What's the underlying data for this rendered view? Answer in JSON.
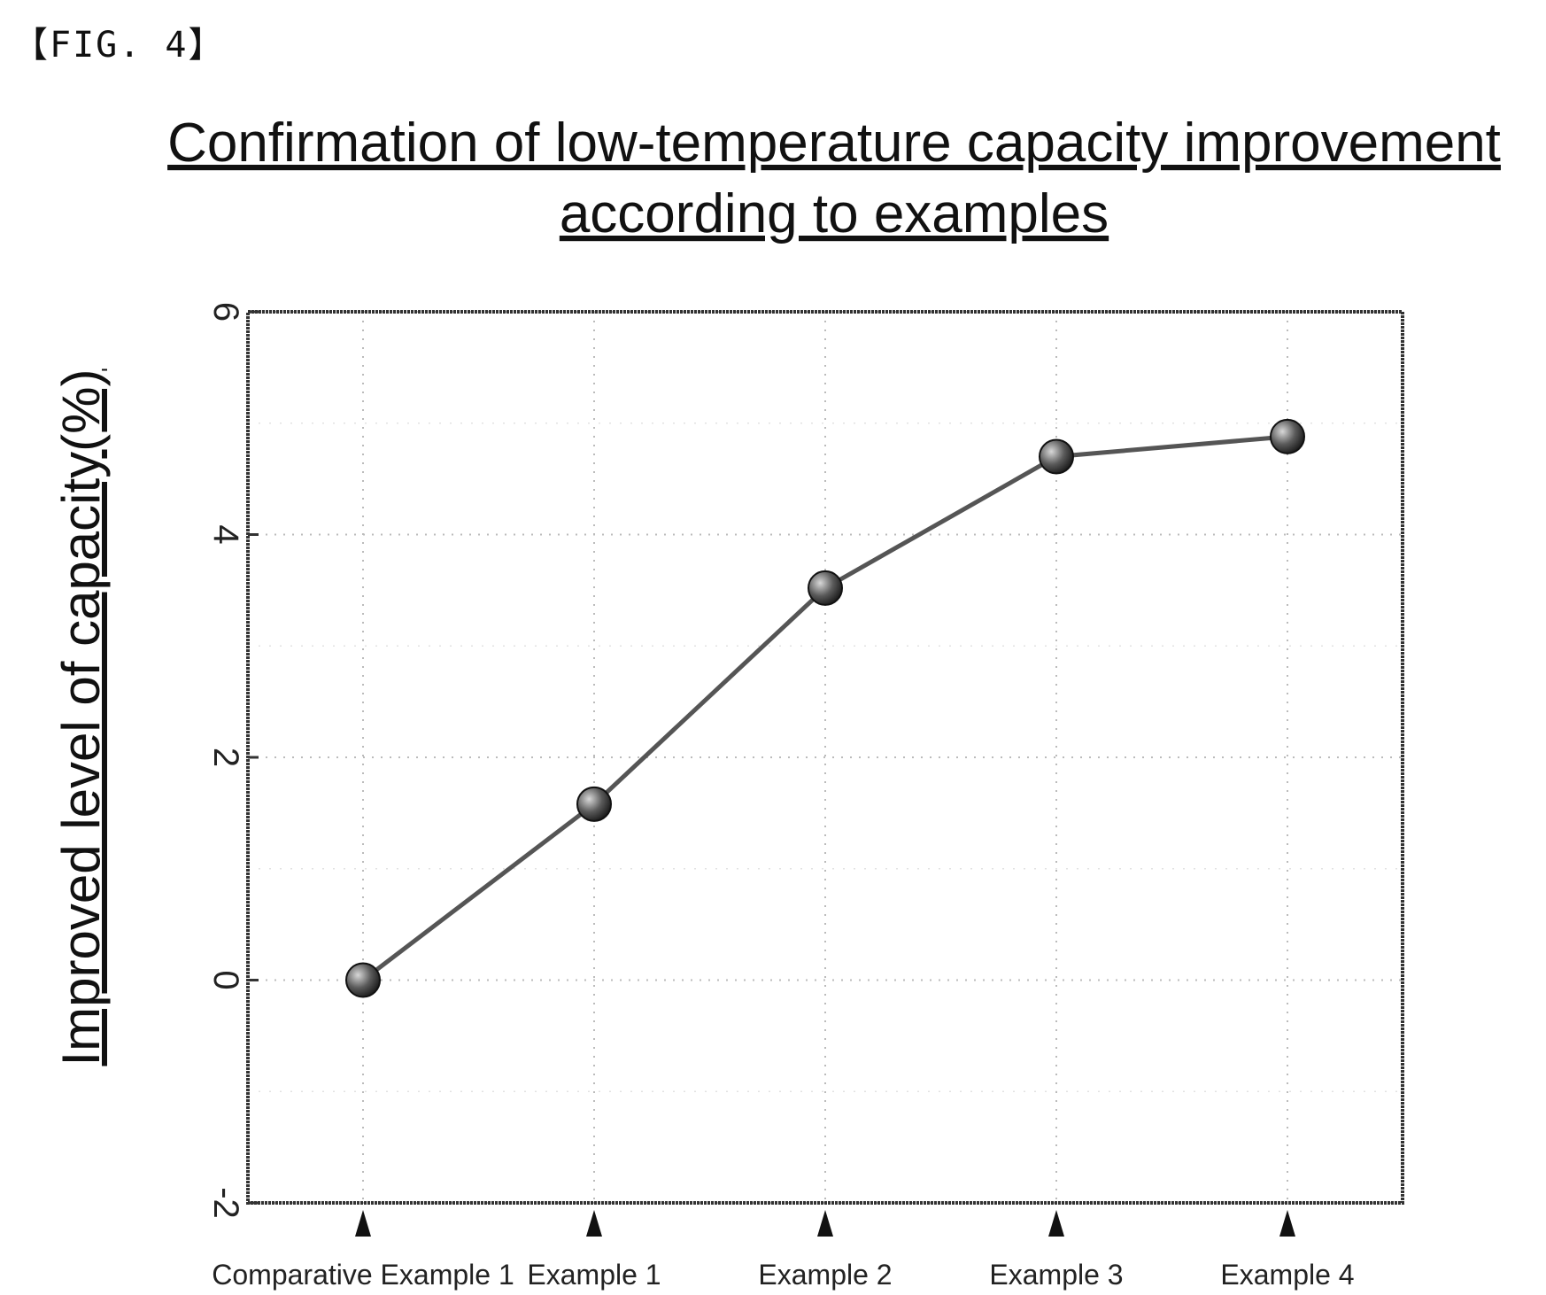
{
  "figure_label": "【FIG. 4】",
  "chart_data": {
    "type": "line",
    "title": "Confirmation of low-temperature capacity improvement according to examples",
    "title_lines": [
      "Confirmation of low-temperature capacity improvement",
      "according to examples"
    ],
    "ylabel": "Improved level of capacity(%)",
    "xlabel": "",
    "categories": [
      "Comparative Example 1",
      "Example 1",
      "Example 2",
      "Example 3",
      "Example 4"
    ],
    "values": [
      0,
      1.58,
      3.52,
      4.7,
      4.88
    ],
    "ylim": [
      -2,
      6
    ],
    "yticks": [
      -2,
      0,
      2,
      4,
      6
    ],
    "grid": true,
    "marker": "circle",
    "category_marker": "triangle",
    "colors": {
      "line": "#555555",
      "marker": "#333333",
      "axis": "#333333",
      "grid": "#bbbbbb"
    }
  }
}
